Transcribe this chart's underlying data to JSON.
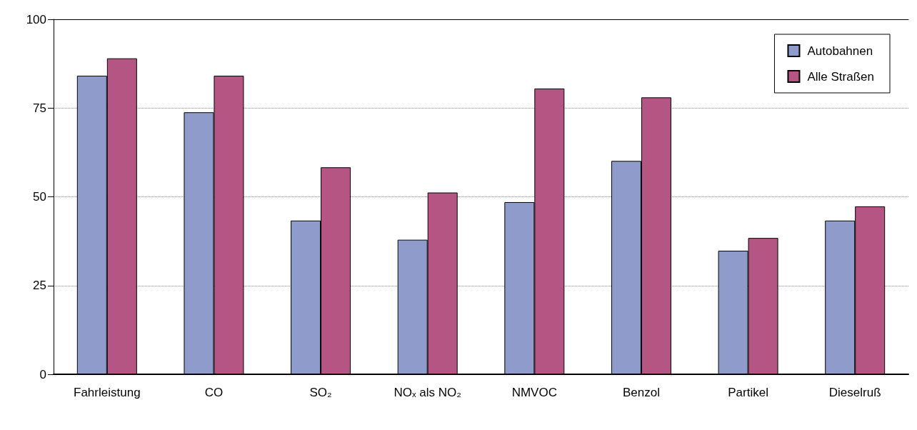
{
  "chart_data": {
    "type": "bar",
    "categories": [
      "Fahrleistung",
      "CO",
      "SO₂",
      "NOₓ als NO₂",
      "NMVOC",
      "Benzol",
      "Partikel",
      "Dieselruß"
    ],
    "series": [
      {
        "name": "Autobahnen",
        "color": "#8f9bcb",
        "values": [
          84.1,
          73.8,
          43.3,
          37.9,
          48.5,
          60.1,
          34.8,
          43.3
        ]
      },
      {
        "name": "Alle Straßen",
        "color": "#b55584",
        "values": [
          89.0,
          84.1,
          58.3,
          51.2,
          80.5,
          78.0,
          38.4,
          47.3
        ]
      }
    ],
    "ylim": [
      0,
      100
    ],
    "yticks": [
      0,
      25,
      50,
      75,
      100
    ],
    "grid": "y",
    "legend": "top right"
  }
}
